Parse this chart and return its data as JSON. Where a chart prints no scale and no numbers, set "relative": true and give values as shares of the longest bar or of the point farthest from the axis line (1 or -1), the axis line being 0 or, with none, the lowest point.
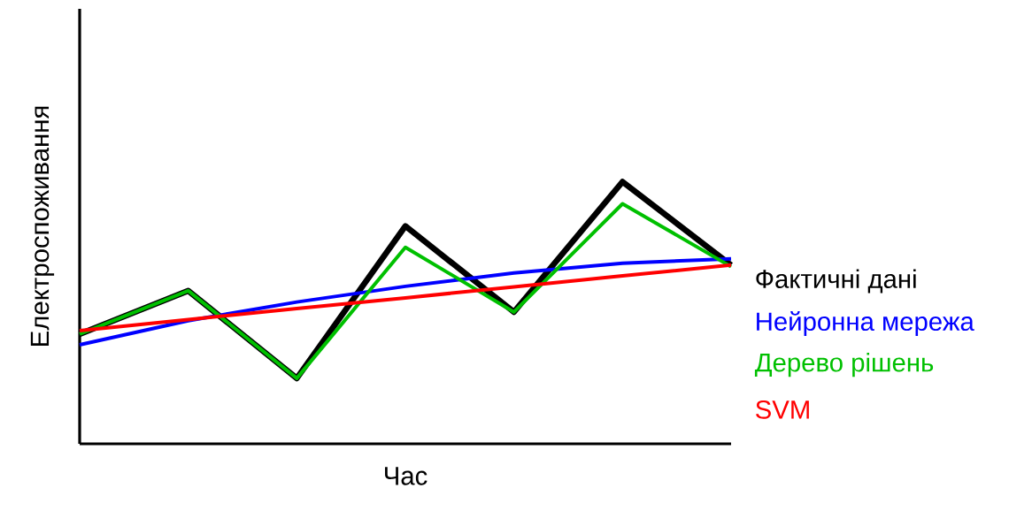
{
  "chart_data": {
    "type": "line",
    "relative": true,
    "xlabel": "Час",
    "ylabel": "Електроспоживання",
    "categories": [
      null,
      null,
      null,
      null,
      null,
      null,
      null
    ],
    "legend": "right",
    "series": [
      {
        "name": "Фактичні дані",
        "color": "#000000",
        "values": [
          0.419,
          0.584,
          0.25,
          0.831,
          0.503,
          1,
          0.682
        ]
      },
      {
        "name": "Нейронна мережа",
        "color": "#0000ff",
        "values": [
          0.378,
          0.47,
          0.541,
          0.601,
          0.652,
          0.689,
          0.706
        ]
      },
      {
        "name": "Дерево рішень",
        "color": "#00c000",
        "values": [
          0.419,
          0.584,
          0.25,
          0.75,
          0.503,
          0.916,
          0.676
        ]
      },
      {
        "name": "SVM",
        "color": "#ff0000",
        "values": [
          0.432,
          0.474,
          0.516,
          0.557,
          0.599,
          0.641,
          0.682
        ]
      }
    ]
  }
}
